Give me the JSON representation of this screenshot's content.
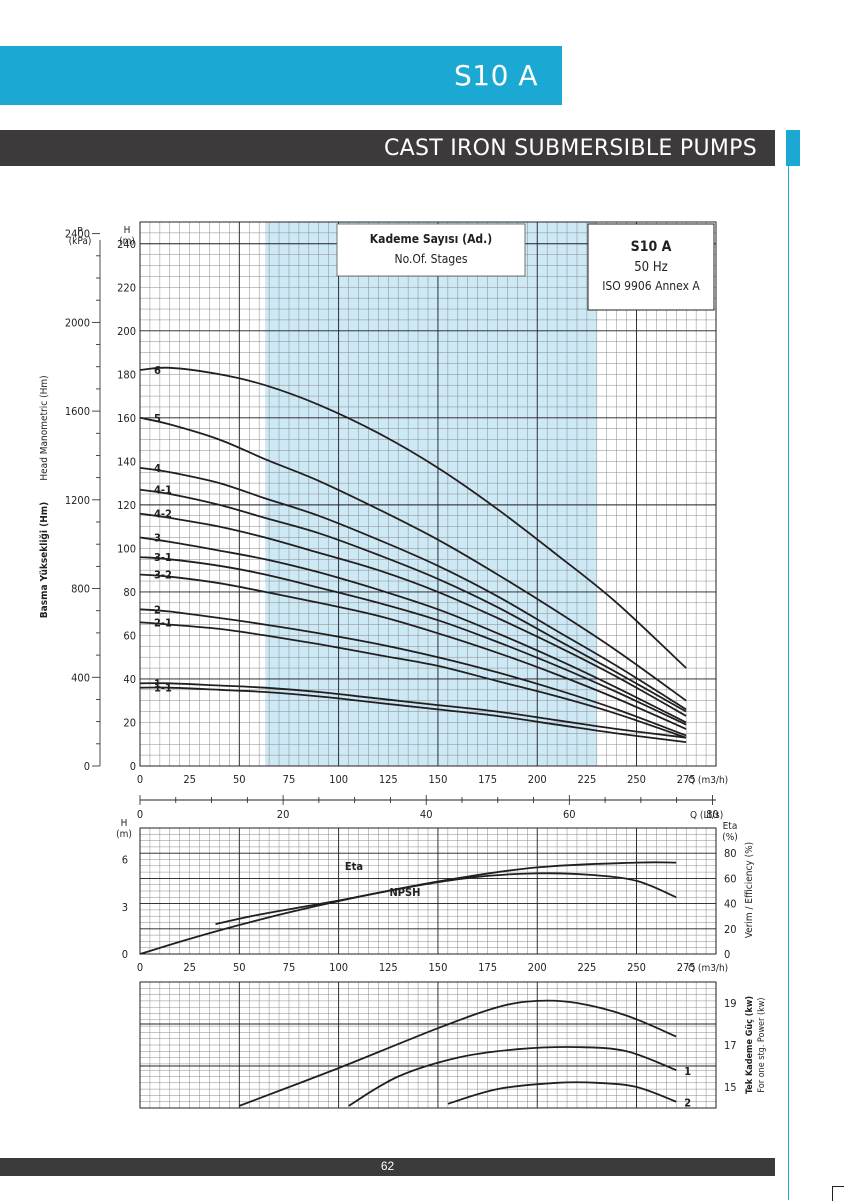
{
  "header": {
    "model_tab": "S10 A",
    "section_title": "CAST IRON SUBMERSIBLE PUMPS"
  },
  "footer": {
    "page_number": "62"
  },
  "colors": {
    "accent": "#1ba9d4",
    "dark": "#3d3a3b",
    "band": "#cde9f5",
    "curve": "#231f20"
  },
  "legend": {
    "stages_title": "Kademe Sayısı (Ad.)",
    "stages_subtitle": "No.Of. Stages",
    "model": "S10 A",
    "frequency": "50 Hz",
    "standard": "ISO 9906 Annex A"
  },
  "chart_data": [
    {
      "type": "line",
      "title": "",
      "xlabel": "Q (m3/h)",
      "ylabel": "H (m)",
      "y2label": "P (kPa)",
      "left_rotated_labels": [
        "Head Manometric (Hm)",
        "Basma Yüksekliği (Hm)"
      ],
      "xlim": [
        0,
        290
      ],
      "ylim": [
        0,
        250
      ],
      "x_ticks": [
        0,
        25,
        50,
        75,
        100,
        125,
        150,
        175,
        200,
        225,
        250,
        275
      ],
      "y_ticks": [
        0,
        20,
        40,
        60,
        80,
        100,
        120,
        140,
        160,
        180,
        200,
        220,
        240
      ],
      "p_ticks": [
        0,
        400,
        800,
        1200,
        1600,
        2000,
        2400
      ],
      "recommended_range": [
        63,
        230
      ],
      "grid": true,
      "series": [
        {
          "name": "6",
          "x": [
            0,
            15,
            40,
            63,
            90,
            120,
            150,
            180,
            210,
            240,
            275
          ],
          "y": [
            182,
            183,
            180,
            175,
            166,
            153,
            137,
            118,
            97,
            75,
            45
          ]
        },
        {
          "name": "5",
          "x": [
            0,
            15,
            40,
            63,
            90,
            120,
            150,
            180,
            210,
            240,
            275
          ],
          "y": [
            160,
            157,
            150,
            141,
            131,
            118,
            104,
            88,
            71,
            53,
            30
          ]
        },
        {
          "name": "4",
          "x": [
            0,
            15,
            40,
            63,
            90,
            120,
            150,
            180,
            210,
            240,
            275
          ],
          "y": [
            137,
            135,
            130,
            123,
            115,
            104,
            92,
            78,
            62,
            46,
            26
          ]
        },
        {
          "name": "4-1",
          "x": [
            0,
            15,
            40,
            63,
            90,
            120,
            150,
            180,
            210,
            240,
            275
          ],
          "y": [
            127,
            125,
            120,
            114,
            107,
            97,
            86,
            73,
            58,
            43,
            25
          ]
        },
        {
          "name": "4-2",
          "x": [
            0,
            15,
            40,
            63,
            90,
            120,
            150,
            180,
            210,
            240,
            275
          ],
          "y": [
            116,
            114,
            110,
            105,
            98,
            90,
            80,
            68,
            55,
            41,
            23
          ]
        },
        {
          "name": "3",
          "x": [
            0,
            15,
            40,
            63,
            90,
            120,
            150,
            180,
            210,
            240,
            275
          ],
          "y": [
            105,
            103,
            99,
            95,
            89,
            81,
            72,
            61,
            49,
            36,
            20
          ]
        },
        {
          "name": "3-1",
          "x": [
            0,
            15,
            40,
            63,
            90,
            120,
            150,
            180,
            210,
            240,
            275
          ],
          "y": [
            96,
            95,
            92,
            88,
            82,
            75,
            67,
            57,
            46,
            34,
            19
          ]
        },
        {
          "name": "3-2",
          "x": [
            0,
            15,
            40,
            63,
            90,
            120,
            150,
            180,
            210,
            240,
            275
          ],
          "y": [
            88,
            87,
            84,
            80,
            75,
            69,
            61,
            52,
            42,
            31,
            17
          ]
        },
        {
          "name": "2",
          "x": [
            0,
            15,
            40,
            63,
            90,
            120,
            150,
            180,
            210,
            240,
            275
          ],
          "y": [
            72,
            71,
            68,
            65,
            61,
            56,
            50,
            43,
            35,
            26,
            14
          ]
        },
        {
          "name": "2-1",
          "x": [
            0,
            15,
            40,
            63,
            90,
            120,
            150,
            180,
            210,
            240,
            275
          ],
          "y": [
            66,
            65,
            63,
            60,
            56,
            51,
            46,
            39,
            32,
            24,
            13
          ]
        },
        {
          "name": "1",
          "x": [
            0,
            15,
            40,
            63,
            90,
            120,
            150,
            180,
            210,
            240,
            275
          ],
          "y": [
            38,
            38,
            37,
            36,
            34,
            31,
            28,
            25,
            21,
            17,
            13
          ]
        },
        {
          "name": "1-1",
          "x": [
            0,
            15,
            40,
            63,
            90,
            120,
            150,
            180,
            210,
            240,
            275
          ],
          "y": [
            36,
            36,
            35,
            34,
            32,
            29,
            26,
            23,
            19,
            15,
            11
          ]
        }
      ]
    },
    {
      "type": "line",
      "title": "",
      "xlabel": "Q (Lt/s)",
      "xlim": [
        0,
        80.5
      ],
      "x_ticks": [
        0,
        20,
        40,
        60,
        80
      ],
      "axis_only": true
    },
    {
      "type": "line",
      "title": "",
      "xlabel": "Q (m3/h)",
      "ylabel": "H (m)",
      "y2label": "Eta (%)",
      "right_rotated_labels": [
        "Verim / Efficiency (%)"
      ],
      "xlim": [
        0,
        290
      ],
      "ylim": [
        0,
        8
      ],
      "y2lim": [
        0,
        100
      ],
      "x_ticks": [
        0,
        25,
        50,
        75,
        100,
        125,
        150,
        175,
        200,
        225,
        250,
        275
      ],
      "y_ticks": [
        0,
        3,
        6
      ],
      "y2_ticks": [
        0,
        20,
        40,
        60,
        80
      ],
      "grid": true,
      "series": [
        {
          "name": "Eta",
          "axis": "right",
          "x": [
            0,
            25,
            50,
            75,
            100,
            125,
            150,
            175,
            200,
            225,
            250,
            270
          ],
          "y": [
            0,
            12,
            23,
            33,
            42,
            50,
            57,
            62,
            64,
            63,
            58,
            45
          ]
        },
        {
          "name": "NPSH",
          "axis": "left",
          "x": [
            38,
            60,
            100,
            150,
            200,
            250,
            270
          ],
          "y": [
            1.9,
            2.5,
            3.4,
            4.6,
            5.5,
            5.8,
            5.8
          ]
        }
      ]
    },
    {
      "type": "line",
      "title": "",
      "ylabel": "Tek Kademe Güç (kw)",
      "y2label": "For one stg. Power (kw)",
      "xlim": [
        0,
        290
      ],
      "ylim": [
        14,
        20
      ],
      "y_ticks": [
        15,
        17,
        19
      ],
      "grid": true,
      "series": [
        {
          "name": "",
          "x": [
            50,
            100,
            150,
            180,
            200,
            220,
            245,
            270
          ],
          "y": [
            14.1,
            15.9,
            17.8,
            18.8,
            19.1,
            19.0,
            18.4,
            17.4
          ]
        },
        {
          "name": "1",
          "x": [
            105,
            130,
            160,
            190,
            220,
            245,
            270
          ],
          "y": [
            14.1,
            15.5,
            16.4,
            16.8,
            16.9,
            16.7,
            15.8
          ]
        },
        {
          "name": "2",
          "x": [
            155,
            180,
            210,
            230,
            250,
            270
          ],
          "y": [
            14.2,
            14.9,
            15.2,
            15.2,
            15.0,
            14.3
          ]
        }
      ]
    }
  ]
}
